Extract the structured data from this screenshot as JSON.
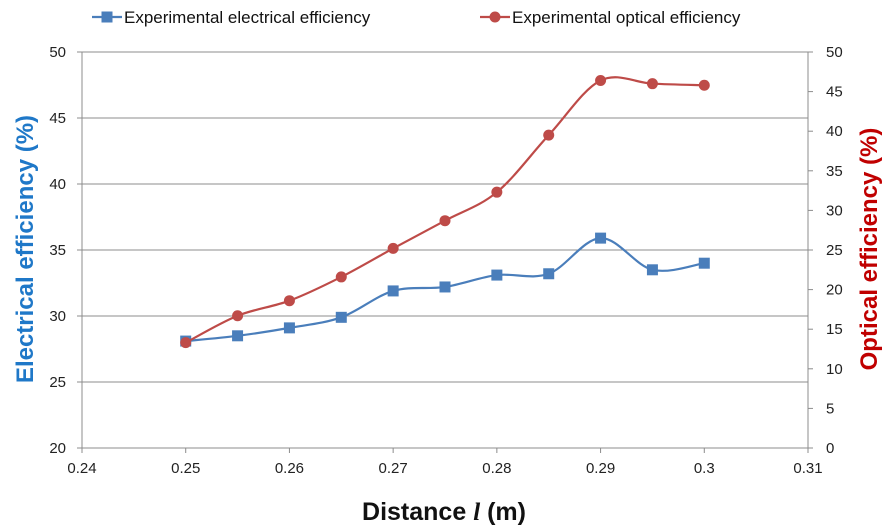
{
  "chart_data": {
    "type": "line",
    "x": [
      0.25,
      0.255,
      0.26,
      0.265,
      0.27,
      0.275,
      0.28,
      0.285,
      0.29,
      0.295,
      0.3
    ],
    "x_ticks": [
      "0.24",
      "0.25",
      "0.26",
      "0.27",
      "0.28",
      "0.29",
      "0.3",
      "0.31"
    ],
    "xlim": [
      0.24,
      0.31
    ],
    "xlabel_prefix": "Distance",
    "xlabel_var": "l",
    "xlabel_suffix": "(m)",
    "ylabel_left": "Electrical efficiency (%)",
    "ylabel_right": "Optical efficiency (%)",
    "ylim_left": [
      20,
      50
    ],
    "y_ticks_left": [
      "20",
      "25",
      "30",
      "35",
      "40",
      "45",
      "50"
    ],
    "ylim_right": [
      0,
      50
    ],
    "y_ticks_right": [
      "0",
      "5",
      "10",
      "15",
      "20",
      "25",
      "30",
      "35",
      "40",
      "45",
      "50"
    ],
    "grid": true,
    "legend_position": "top",
    "series": [
      {
        "name": "Experimental electrical efficiency",
        "axis": "left",
        "marker": "square",
        "color": "#4a7ebb",
        "values": [
          28.1,
          28.5,
          29.1,
          29.9,
          31.9,
          32.2,
          33.1,
          33.2,
          35.9,
          33.5,
          34.0
        ]
      },
      {
        "name": "Experimental optical efficiency",
        "axis": "right",
        "marker": "circle",
        "color": "#be4b48",
        "values": [
          13.3,
          16.7,
          18.6,
          21.6,
          25.2,
          28.7,
          32.3,
          39.5,
          46.4,
          46.0,
          45.8
        ]
      }
    ],
    "ylabel_left_color": "#1f78c8",
    "ylabel_right_color": "#c00000"
  }
}
